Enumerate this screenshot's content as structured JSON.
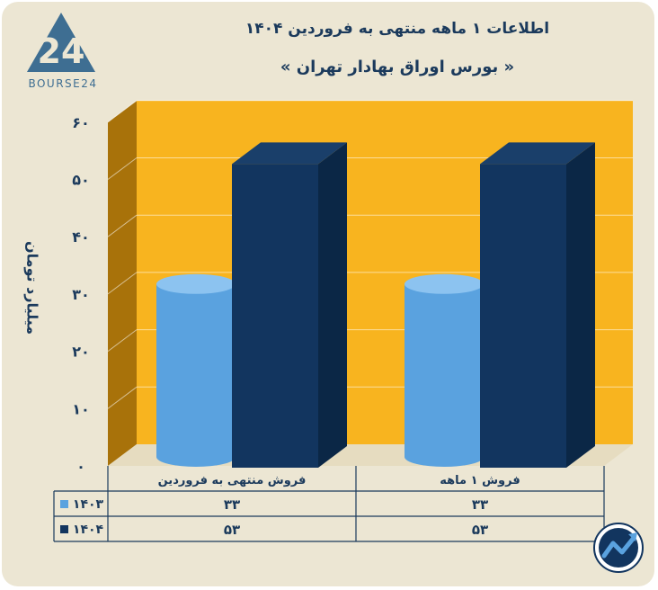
{
  "brand": {
    "logo_text": "BOURSE24",
    "logo_number": "24"
  },
  "title": "اطلاعات ۱ ماهه منتهی به فروردین ۱۴۰۴",
  "subtitle": "« بورس اوراق بهادار تهران »",
  "colors": {
    "background": "#ece6d3",
    "plot_back": "#f8b41f",
    "plot_side": "#a8720a",
    "series_1403": "#5aa2df",
    "series_1404": "#12355f",
    "text": "#1b3a5c"
  },
  "chart_data": {
    "type": "bar",
    "title": "اطلاعات ۱ ماهه منتهی به فروردین ۱۴۰۴",
    "subtitle": "« بورس اوراق بهادار تهران »",
    "ylabel": "میلیارد تومان",
    "xlabel": "",
    "ylim": [
      0,
      60
    ],
    "yticks": [
      0,
      10,
      20,
      30,
      40,
      50,
      60
    ],
    "ytick_labels": [
      "۰",
      "۱۰",
      "۲۰",
      "۳۰",
      "۴۰",
      "۵۰",
      "۶۰"
    ],
    "categories": [
      "فروش منتهی به  فروردین",
      "فروش ۱  ماهه"
    ],
    "grid": true,
    "legend": "data-table-left",
    "series": [
      {
        "name": "۱۴۰۳",
        "values": [
          33,
          33
        ],
        "value_labels": [
          "۳۳",
          "۳۳"
        ],
        "shape": "cylinder"
      },
      {
        "name": "۱۴۰۴",
        "values": [
          53,
          53
        ],
        "value_labels": [
          "۵۳",
          "۵۳"
        ],
        "shape": "box"
      }
    ]
  }
}
